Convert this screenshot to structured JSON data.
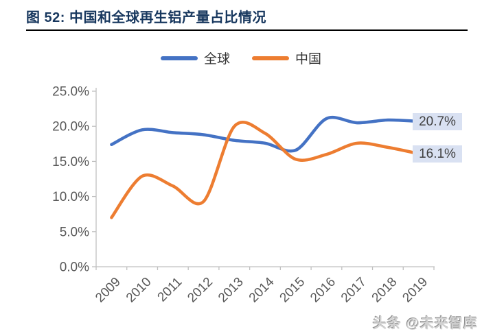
{
  "figure_header": {
    "title": "图 52: 中国和全球再生铝产量占比情况"
  },
  "chart_data": {
    "type": "line",
    "title": "中国和全球再生铝产量占比情况",
    "categories": [
      "2009",
      "2010",
      "2011",
      "2012",
      "2013",
      "2014",
      "2015",
      "2016",
      "2017",
      "2018",
      "2019"
    ],
    "series": [
      {
        "name": "全球",
        "color": "#4472C4",
        "values": [
          17.4,
          19.5,
          19.1,
          18.8,
          18.0,
          17.6,
          16.6,
          21.1,
          20.5,
          20.9,
          20.7
        ],
        "end_label": "20.7%"
      },
      {
        "name": "中国",
        "color": "#ED7D31",
        "values": [
          7.0,
          12.9,
          11.5,
          9.3,
          20.0,
          19.0,
          15.3,
          16.0,
          17.6,
          17.0,
          16.1
        ],
        "end_label": "16.1%"
      }
    ],
    "xlabel": "",
    "ylabel": "",
    "ylim": [
      0,
      25
    ],
    "y_ticks": [
      "25.0%",
      "20.0%",
      "15.0%",
      "10.0%",
      "5.0%",
      "0.0%"
    ],
    "grid": false,
    "legend_position": "top-center",
    "smooth": true
  },
  "watermark": {
    "text": "头条 @未来智库"
  },
  "colors": {
    "title_text": "#17375E",
    "title_rule": "#000000",
    "axis_line": "#C0C0C0",
    "tick_label": "#595959",
    "data_label_bg": "#D9E1F2",
    "data_label_text": "#3f3f3f"
  }
}
